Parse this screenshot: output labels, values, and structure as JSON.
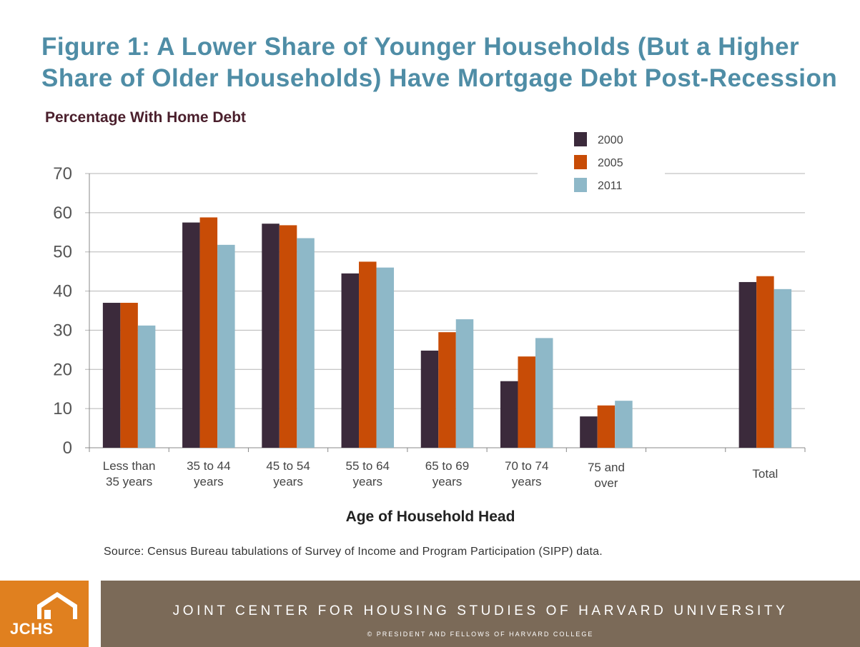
{
  "title": "Figure 1: A Lower Share of Younger Households (But a Higher Share of Older Households) Have Mortgage Debt Post-Recession",
  "subtitle": "Percentage With Home Debt",
  "source": "Source: Census Bureau tabulations of Survey of Income and Program Participation (SIPP) data.",
  "footer": {
    "org": "JOINT CENTER FOR HOUSING STUDIES OF HARVARD UNIVERSITY",
    "copyright": "© PRESIDENT AND FELLOWS OF HARVARD COLLEGE",
    "logo_text": "JCHS",
    "logo_icon": "house-icon"
  },
  "colors": {
    "title": "#4f8da6",
    "subtitle": "#4a1f2c",
    "footer_bar": "#7b6a58",
    "logo_box": "#e0801f"
  },
  "chart_data": {
    "type": "bar",
    "ylabel": "",
    "xlabel": "Age of Household Head",
    "ylim": [
      0,
      70
    ],
    "yticks": [
      0,
      10,
      20,
      30,
      40,
      50,
      60,
      70
    ],
    "grid": true,
    "legend_position": "top-right",
    "categories": [
      [
        "Less than",
        "35 years"
      ],
      [
        "35 to 44",
        "years"
      ],
      [
        "45 to 54",
        "years"
      ],
      [
        "55 to 64",
        "years"
      ],
      [
        "65 to 69",
        "years"
      ],
      [
        "70 to 74",
        "years"
      ],
      [
        "75 and",
        "over"
      ],
      [],
      [
        "Total"
      ]
    ],
    "series": [
      {
        "name": "2000",
        "color": "#3b2a3b",
        "values": [
          37,
          57.5,
          57.2,
          44.5,
          24.8,
          17,
          8,
          null,
          42.3
        ]
      },
      {
        "name": "2005",
        "color": "#c84c06",
        "values": [
          37,
          58.8,
          56.8,
          47.5,
          29.5,
          23.3,
          10.8,
          null,
          43.8
        ]
      },
      {
        "name": "2011",
        "color": "#8eb8c8",
        "values": [
          31.2,
          51.8,
          53.5,
          46,
          32.8,
          28,
          12,
          null,
          40.5
        ]
      }
    ]
  }
}
